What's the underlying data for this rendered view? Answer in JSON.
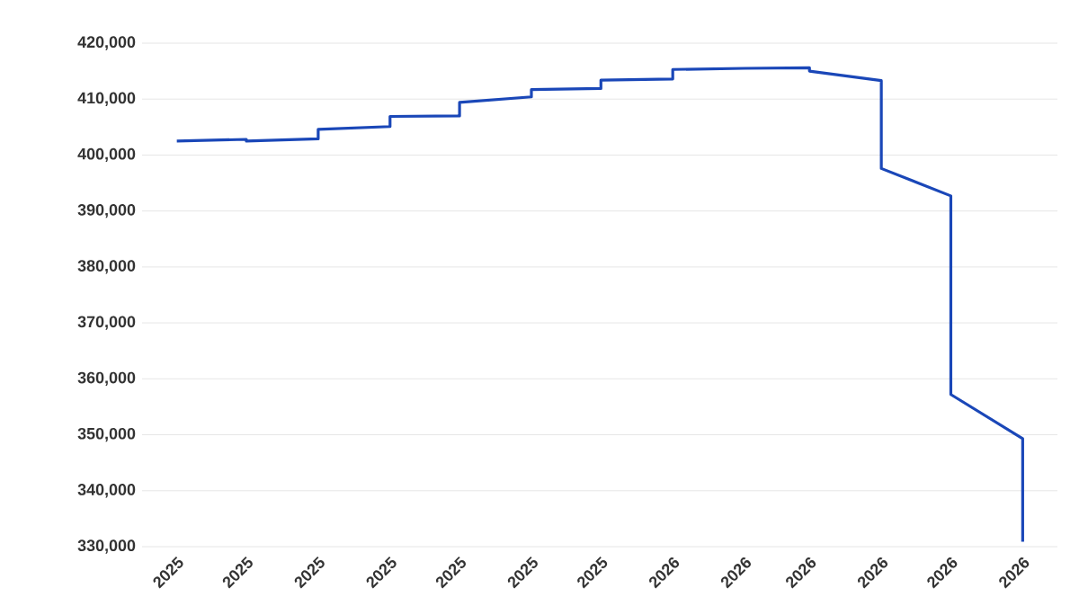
{
  "chart_data": {
    "type": "line",
    "x": [
      "2025-06",
      "2025-07",
      "2025-07",
      "2025-08",
      "2025-08",
      "2025-09",
      "2025-09",
      "2025-10",
      "2025-10",
      "2025-11",
      "2025-11",
      "2025-12",
      "2025-12",
      "2026-01",
      "2026-01",
      "2026-02",
      "2026-03",
      "2026-03",
      "2026-04",
      "2026-04",
      "2026-05",
      "2026-05",
      "2026-06",
      "2026-06"
    ],
    "values": [
      402500,
      402800,
      402500,
      402900,
      404600,
      405100,
      406900,
      407000,
      409400,
      410400,
      411700,
      411900,
      413400,
      413600,
      415300,
      415500,
      415600,
      415000,
      413300,
      397600,
      392700,
      357200,
      349300,
      330900
    ],
    "color": "#1a47b8",
    "xlim": [
      "2025-05-17",
      "2026-06-16"
    ],
    "xticks": [
      {
        "value": "2025-06",
        "label": "2025"
      },
      {
        "value": "2025-07",
        "label": "2025"
      },
      {
        "value": "2025-08",
        "label": "2025"
      },
      {
        "value": "2025-09",
        "label": "2025"
      },
      {
        "value": "2025-10",
        "label": "2025"
      },
      {
        "value": "2025-11",
        "label": "2025"
      },
      {
        "value": "2025-12",
        "label": "2025"
      },
      {
        "value": "2026-01",
        "label": "2026"
      },
      {
        "value": "2026-02",
        "label": "2026"
      },
      {
        "value": "2026-03",
        "label": "2026"
      },
      {
        "value": "2026-04",
        "label": "2026"
      },
      {
        "value": "2026-05",
        "label": "2026"
      },
      {
        "value": "2026-06",
        "label": "2026"
      }
    ],
    "ylim": [
      330000,
      420000
    ],
    "yticks": [
      {
        "value": 330000,
        "label": "330,000"
      },
      {
        "value": 340000,
        "label": "340,000"
      },
      {
        "value": 350000,
        "label": "350,000"
      },
      {
        "value": 360000,
        "label": "360,000"
      },
      {
        "value": 370000,
        "label": "370,000"
      },
      {
        "value": 380000,
        "label": "380,000"
      },
      {
        "value": 390000,
        "label": "390,000"
      },
      {
        "value": 400000,
        "label": "400,000"
      },
      {
        "value": 410000,
        "label": "410,000"
      },
      {
        "value": 420000,
        "label": "420,000"
      }
    ],
    "grid": "y",
    "marker": "none",
    "line_style": "solid"
  }
}
